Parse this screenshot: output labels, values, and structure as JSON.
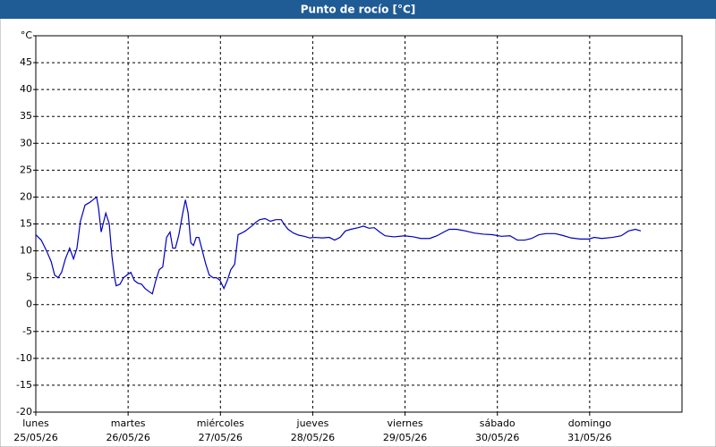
{
  "chart_data": {
    "type": "line",
    "title": "Punto de rocío [°C]",
    "xlim": [
      0,
      168
    ],
    "ylim": [
      -20,
      50
    ],
    "yticks": [
      -20,
      -15,
      -10,
      -5,
      0,
      5,
      10,
      15,
      20,
      25,
      30,
      35,
      40,
      45,
      {
        "value": 50,
        "label": "°C"
      }
    ],
    "xticks": [
      {
        "value": 0,
        "label": "lunes",
        "sublabel": "25/05/26"
      },
      {
        "value": 24,
        "label": "martes",
        "sublabel": "26/05/26"
      },
      {
        "value": 48,
        "label": "miércoles",
        "sublabel": "27/05/26"
      },
      {
        "value": 72,
        "label": "jueves",
        "sublabel": "28/05/26"
      },
      {
        "value": 96,
        "label": "viernes",
        "sublabel": "29/05/26"
      },
      {
        "value": 120,
        "label": "sábado",
        "sublabel": "30/05/26"
      },
      {
        "value": 144,
        "label": "domingo",
        "sublabel": "31/05/26"
      }
    ],
    "grid": true,
    "color": "#0000c0",
    "x": [
      0,
      1.4,
      2.8,
      4.0,
      4.9,
      5.8,
      6.7,
      7.7,
      8.8,
      9.8,
      10.7,
      11.6,
      12.8,
      14.0,
      14.9,
      15.8,
      16.3,
      17.0,
      17.5,
      18.2,
      19.1,
      19.8,
      20.5,
      20.9,
      21.9,
      22.8,
      23.7,
      24.7,
      25.6,
      26.5,
      27.5,
      28.4,
      29.3,
      30.3,
      31.2,
      32.1,
      33.0,
      34.0,
      34.9,
      35.6,
      36.3,
      37.2,
      38.2,
      38.9,
      39.6,
      40.3,
      41.0,
      41.7,
      42.4,
      43.3,
      44.2,
      45.1,
      46.1,
      47.0,
      47.9,
      48.9,
      49.8,
      50.7,
      51.7,
      52.6,
      53.5,
      54.5,
      55.4,
      56.3,
      57.2,
      58.2,
      59.6,
      61.0,
      62.4,
      63.8,
      64.7,
      65.6,
      67.0,
      68.4,
      69.8,
      71.2,
      72.6,
      74.5,
      76.3,
      77.7,
      79.1,
      80.5,
      81.9,
      83.8,
      85.2,
      86.6,
      88.0,
      89.4,
      90.8,
      93.1,
      95.9,
      98.2,
      100.1,
      102.4,
      104.3,
      106.1,
      107.5,
      109.4,
      111.7,
      114.0,
      116.4,
      118.7,
      121.0,
      123.3,
      125.2,
      127.1,
      128.9,
      130.8,
      132.6,
      135.0,
      136.8,
      139.2,
      141.5,
      143.8,
      145.2,
      147.1,
      149.9,
      152.2,
      154.1,
      155.9,
      157.3
    ],
    "values": [
      13,
      12,
      10,
      8,
      5.5,
      5,
      6,
      8.5,
      10.5,
      8.5,
      10.5,
      15.5,
      18.5,
      19,
      19.5,
      20,
      18,
      13.5,
      15,
      17,
      15,
      9,
      5,
      3.5,
      3.8,
      5,
      5.5,
      6,
      4.5,
      4,
      3.8,
      3,
      2.5,
      2,
      4.5,
      6.5,
      7,
      12.5,
      13.5,
      10.5,
      10.5,
      13,
      17,
      19.5,
      17,
      11.5,
      11,
      12.5,
      12.5,
      10,
      7.5,
      5.5,
      5,
      5,
      4.5,
      3,
      4.5,
      6.5,
      7.5,
      13,
      13.3,
      13.7,
      14.2,
      14.7,
      15.3,
      15.8,
      16,
      15.5,
      15.8,
      15.8,
      14.8,
      14,
      13.3,
      12.9,
      12.7,
      12.4,
      12.5,
      12.4,
      12.5,
      12,
      12.5,
      13.7,
      14,
      14.3,
      14.6,
      14.2,
      14.3,
      13.5,
      12.8,
      12.6,
      12.8,
      12.6,
      12.3,
      12.3,
      12.8,
      13.5,
      14,
      14,
      13.7,
      13.3,
      13.1,
      13,
      12.7,
      12.8,
      12,
      12,
      12.3,
      13,
      13.2,
      13.2,
      12.9,
      12.4,
      12.2,
      12.2,
      12.5,
      12.3,
      12.5,
      12.8,
      13.7,
      14,
      13.7
    ]
  }
}
